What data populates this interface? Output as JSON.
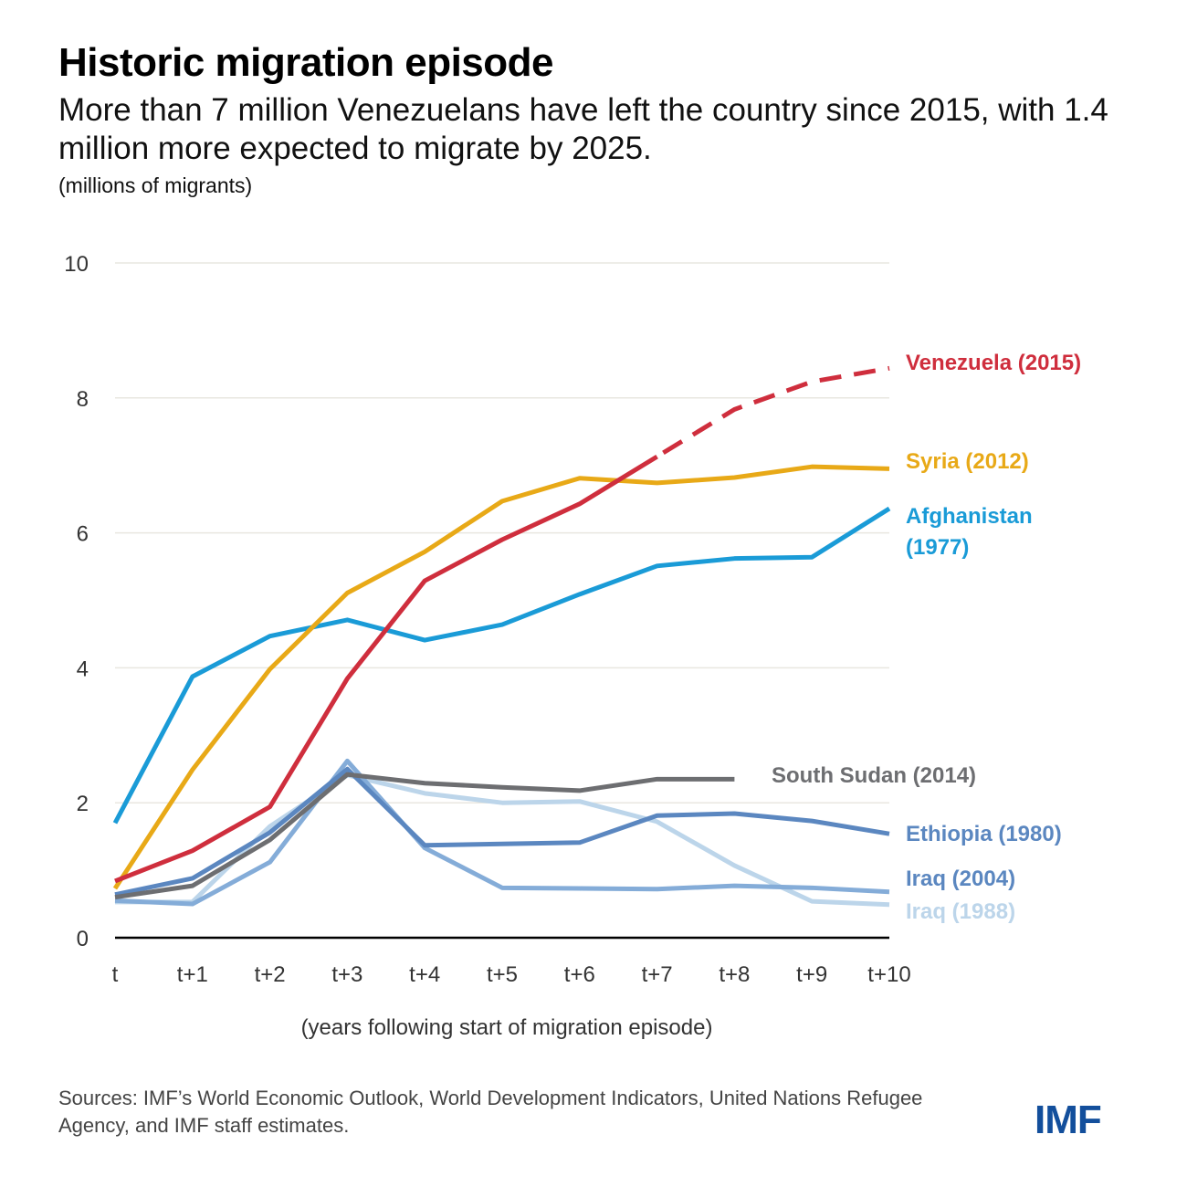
{
  "header": {
    "title": "Historic migration episode",
    "subtitle": "More than 7 million Venezuelans have left the country since 2015, with 1.4 million more expected to migrate by 2025.",
    "unit": "(millions of migrants)"
  },
  "footer": {
    "source": "Sources: IMF’s World Economic Outlook, World Development Indicators, United Nations Refugee Agency, and IMF staff estimates.",
    "logo": "IMF",
    "logo_color": "#134f9c"
  },
  "chart_data": {
    "type": "line",
    "title": "Historic migration episode",
    "xlabel": "(years following start of migration episode)",
    "ylabel": "(millions of migrants)",
    "categories": [
      "t",
      "t+1",
      "t+2",
      "t+3",
      "t+4",
      "t+5",
      "t+6",
      "t+7",
      "t+8",
      "t+9",
      "t+10"
    ],
    "ylim": [
      0,
      10
    ],
    "yticks": [
      "0",
      "2",
      "4",
      "6",
      "8",
      "10"
    ],
    "grid": true,
    "legend": "inline-right",
    "series": [
      {
        "name": "Iraq (1988)",
        "color": "#bcd5ea",
        "values": [
          0.53,
          0.53,
          1.65,
          2.41,
          2.14,
          2.0,
          2.02,
          1.72,
          1.07,
          0.54,
          0.49
        ]
      },
      {
        "name": "Iraq (2004)",
        "color": "#84acd8",
        "label_color": "#5b87c0",
        "values": [
          0.55,
          0.5,
          1.12,
          2.62,
          1.33,
          0.74,
          0.73,
          0.72,
          0.77,
          0.74,
          0.68
        ]
      },
      {
        "name": "Ethiopia (1980)",
        "color": "#5b87c0",
        "values": [
          0.64,
          0.88,
          1.56,
          2.5,
          1.37,
          1.39,
          1.41,
          1.81,
          1.84,
          1.73,
          1.54
        ]
      },
      {
        "name": "South Sudan (2014)",
        "color": "#6d6e71",
        "values": [
          0.6,
          0.77,
          1.45,
          2.42,
          2.29,
          2.23,
          2.18,
          2.35,
          2.35,
          null,
          null
        ]
      },
      {
        "name": "Afghanistan (1977)",
        "label_lines": [
          "Afghanistan",
          "(1977)"
        ],
        "color": "#1a9bd7",
        "values": [
          1.7,
          3.87,
          4.47,
          4.71,
          4.41,
          4.64,
          5.09,
          5.51,
          5.62,
          5.64,
          6.36
        ]
      },
      {
        "name": "Syria (2012)",
        "color": "#e8a917",
        "values": [
          0.73,
          2.49,
          3.98,
          5.11,
          5.72,
          6.47,
          6.81,
          6.74,
          6.82,
          6.98,
          6.95
        ]
      },
      {
        "name": "Venezuela (2015)",
        "color": "#cf2e3d",
        "values": [
          0.84,
          1.29,
          1.94,
          3.84,
          5.29,
          5.9,
          6.43,
          7.13,
          7.83,
          8.24,
          8.44
        ],
        "projected_from_index": 7
      }
    ]
  }
}
